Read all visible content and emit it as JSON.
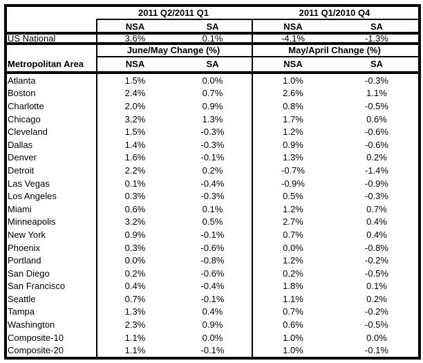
{
  "colors": {
    "background": "#ffffff",
    "border": "#000000",
    "text": "#000000"
  },
  "quarter_header": {
    "group1": "2011 Q2/2011 Q1",
    "group2": "2011 Q1/2010 Q4",
    "columns": [
      "NSA",
      "SA",
      "NSA",
      "SA"
    ]
  },
  "us_national_row": {
    "label": "US National",
    "values": [
      "3.6%",
      "0.1%",
      "-4.1%",
      "-1.3%"
    ]
  },
  "monthly_header": {
    "area_label": "Metropolitan Area",
    "group1": "June/May Change (%)",
    "group2": "May/April Change (%)",
    "columns": [
      "NSA",
      "SA",
      "NSA",
      "SA"
    ]
  },
  "metro_rows": [
    {
      "label": "Atlanta",
      "values": [
        "1.5%",
        "0.0%",
        "1.0%",
        "-0.3%"
      ]
    },
    {
      "label": "Boston",
      "values": [
        "2.4%",
        "0.7%",
        "2.6%",
        "1.1%"
      ]
    },
    {
      "label": "Charlotte",
      "values": [
        "2.0%",
        "0.9%",
        "0.8%",
        "-0.5%"
      ]
    },
    {
      "label": "Chicago",
      "values": [
        "3.2%",
        "1.3%",
        "1.7%",
        "0.6%"
      ]
    },
    {
      "label": "Cleveland",
      "values": [
        "1.5%",
        "-0.3%",
        "1.2%",
        "-0.6%"
      ]
    },
    {
      "label": "Dallas",
      "values": [
        "1.4%",
        "-0.3%",
        "0.9%",
        "-0.6%"
      ]
    },
    {
      "label": "Denver",
      "values": [
        "1.6%",
        "-0.1%",
        "1.3%",
        "0.2%"
      ]
    },
    {
      "label": "Detroit",
      "values": [
        "2.2%",
        "0.2%",
        "-0.7%",
        "-1.4%"
      ]
    },
    {
      "label": "Las Vegas",
      "values": [
        "0.1%",
        "-0.4%",
        "-0.9%",
        "-0.9%"
      ]
    },
    {
      "label": "Los Angeles",
      "values": [
        "0.3%",
        "-0.3%",
        "0.5%",
        "-0.3%"
      ]
    },
    {
      "label": "Miami",
      "values": [
        "0.6%",
        "0.1%",
        "1.2%",
        "0.7%"
      ]
    },
    {
      "label": "Minneapolis",
      "values": [
        "3.2%",
        "0.5%",
        "2.7%",
        "0.4%"
      ]
    },
    {
      "label": "New York",
      "values": [
        "0.9%",
        "-0.1%",
        "0.7%",
        "0.4%"
      ]
    },
    {
      "label": "Phoenix",
      "values": [
        "0.3%",
        "-0.6%",
        "0.0%",
        "-0.8%"
      ]
    },
    {
      "label": "Portland",
      "values": [
        "0.0%",
        "-0.8%",
        "1.2%",
        "-0.2%"
      ]
    },
    {
      "label": "San Diego",
      "values": [
        "0.2%",
        "-0.6%",
        "0.2%",
        "-0.5%"
      ]
    },
    {
      "label": "San Francisco",
      "values": [
        "0.4%",
        "-0.4%",
        "1.8%",
        "0.1%"
      ]
    },
    {
      "label": "Seattle",
      "values": [
        "0.7%",
        "-0.1%",
        "1.1%",
        "0.2%"
      ]
    },
    {
      "label": "Tampa",
      "values": [
        "1.3%",
        "0.4%",
        "0.7%",
        "-0.2%"
      ]
    },
    {
      "label": "Washington",
      "values": [
        "2.3%",
        "0.9%",
        "0.6%",
        "-0.5%"
      ]
    },
    {
      "label": "Composite-10",
      "values": [
        "1.1%",
        "0.0%",
        "1.0%",
        "0.0%"
      ]
    },
    {
      "label": "Composite-20",
      "values": [
        "1.1%",
        "-0.1%",
        "1.0%",
        "-0.1%"
      ]
    }
  ],
  "chart_data": {
    "type": "table",
    "quarterly_section": {
      "column_groups": [
        "2011 Q2/2011 Q1",
        "2011 Q1/2010 Q4"
      ],
      "columns": [
        "NSA",
        "SA",
        "NSA",
        "SA"
      ],
      "rows": [
        [
          "US National",
          3.6,
          0.1,
          -4.1,
          -1.3
        ]
      ]
    },
    "monthly_section": {
      "column_groups": [
        "June/May Change (%)",
        "May/April Change (%)"
      ],
      "columns": [
        "Metropolitan Area",
        "NSA",
        "SA",
        "NSA",
        "SA"
      ],
      "rows": [
        [
          "Atlanta",
          1.5,
          0.0,
          1.0,
          -0.3
        ],
        [
          "Boston",
          2.4,
          0.7,
          2.6,
          1.1
        ],
        [
          "Charlotte",
          2.0,
          0.9,
          0.8,
          -0.5
        ],
        [
          "Chicago",
          3.2,
          1.3,
          1.7,
          0.6
        ],
        [
          "Cleveland",
          1.5,
          -0.3,
          1.2,
          -0.6
        ],
        [
          "Dallas",
          1.4,
          -0.3,
          0.9,
          -0.6
        ],
        [
          "Denver",
          1.6,
          -0.1,
          1.3,
          0.2
        ],
        [
          "Detroit",
          2.2,
          0.2,
          -0.7,
          -1.4
        ],
        [
          "Las Vegas",
          0.1,
          -0.4,
          -0.9,
          -0.9
        ],
        [
          "Los Angeles",
          0.3,
          -0.3,
          0.5,
          -0.3
        ],
        [
          "Miami",
          0.6,
          0.1,
          1.2,
          0.7
        ],
        [
          "Minneapolis",
          3.2,
          0.5,
          2.7,
          0.4
        ],
        [
          "New York",
          0.9,
          -0.1,
          0.7,
          0.4
        ],
        [
          "Phoenix",
          0.3,
          -0.6,
          0.0,
          -0.8
        ],
        [
          "Portland",
          0.0,
          -0.8,
          1.2,
          -0.2
        ],
        [
          "San Diego",
          0.2,
          -0.6,
          0.2,
          -0.5
        ],
        [
          "San Francisco",
          0.4,
          -0.4,
          1.8,
          0.1
        ],
        [
          "Seattle",
          0.7,
          -0.1,
          1.1,
          0.2
        ],
        [
          "Tampa",
          1.3,
          0.4,
          0.7,
          -0.2
        ],
        [
          "Washington",
          2.3,
          0.9,
          0.6,
          -0.5
        ],
        [
          "Composite-10",
          1.1,
          0.0,
          1.0,
          0.0
        ],
        [
          "Composite-20",
          1.1,
          -0.1,
          1.0,
          -0.1
        ]
      ]
    }
  }
}
